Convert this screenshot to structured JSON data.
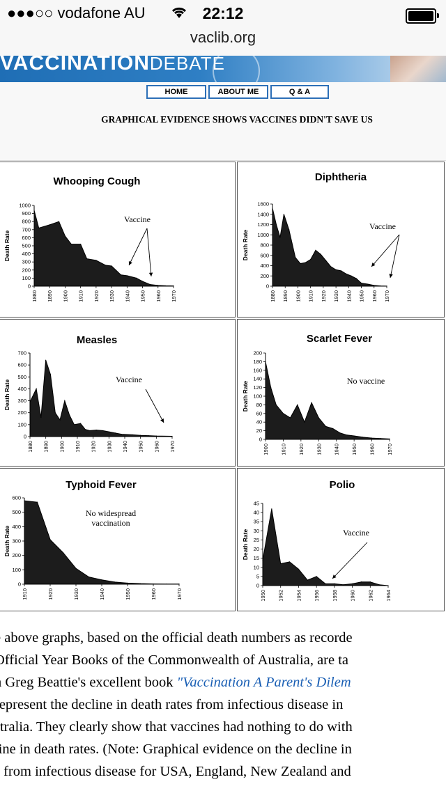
{
  "status_bar": {
    "carrier": "●●●○○ vodafone AU",
    "time": "22:12"
  },
  "browser": {
    "url": "vaclib.org"
  },
  "banner": {
    "brand_bold": "VACCINATION",
    "brand_thin": "DEBATE"
  },
  "nav": {
    "items": [
      "HOME",
      "ABOUT ME",
      "Q & A"
    ]
  },
  "headline": "GRAPHICAL EVIDENCE SHOWS VACCINES DIDN'T SAVE US",
  "chart_data": [
    {
      "type": "area",
      "title": "Whooping Cough",
      "ylabel": "Death Rate",
      "x": [
        1880,
        1883,
        1890,
        1896,
        1900,
        1904,
        1910,
        1914,
        1920,
        1926,
        1930,
        1936,
        1940,
        1946,
        1950,
        1955,
        1960,
        1965,
        1970
      ],
      "y": [
        940,
        720,
        760,
        800,
        620,
        520,
        520,
        340,
        320,
        260,
        250,
        140,
        130,
        100,
        60,
        20,
        10,
        5,
        3
      ],
      "xlim": [
        1880,
        1970
      ],
      "ylim": [
        0,
        1000
      ],
      "xticks": [
        1880,
        1890,
        1900,
        1910,
        1920,
        1930,
        1940,
        1950,
        1960,
        1970
      ],
      "yticks": [
        0,
        100,
        200,
        300,
        400,
        500,
        600,
        700,
        800,
        900,
        1000
      ],
      "annotation": "Vaccine",
      "annotation_points": [
        1942,
        1955
      ]
    },
    {
      "type": "area",
      "title": "Diphtheria",
      "ylabel": "Death Rate",
      "x": [
        1880,
        1883,
        1886,
        1889,
        1893,
        1898,
        1902,
        1906,
        1910,
        1914,
        1918,
        1922,
        1926,
        1930,
        1934,
        1938,
        1942,
        1946,
        1950,
        1955,
        1960,
        1965,
        1970
      ],
      "y": [
        1520,
        1200,
        950,
        1400,
        1100,
        560,
        440,
        460,
        520,
        700,
        620,
        500,
        380,
        320,
        300,
        240,
        200,
        150,
        60,
        40,
        15,
        5,
        2
      ],
      "xlim": [
        1880,
        1970
      ],
      "ylim": [
        0,
        1600
      ],
      "xticks": [
        1880,
        1890,
        1900,
        1910,
        1920,
        1930,
        1940,
        1950,
        1960,
        1970
      ],
      "yticks": [
        0,
        200,
        400,
        600,
        800,
        1000,
        1200,
        1400,
        1600
      ],
      "annotation": "Vaccine",
      "annotation_points": [
        1942,
        1948
      ]
    },
    {
      "type": "area",
      "title": "Measles",
      "ylabel": "Death Rate",
      "x": [
        1880,
        1884,
        1887,
        1890,
        1893,
        1896,
        1899,
        1902,
        1905,
        1908,
        1912,
        1915,
        1918,
        1922,
        1926,
        1930,
        1934,
        1938,
        1945,
        1950,
        1955,
        1960,
        1970
      ],
      "y": [
        290,
        400,
        160,
        640,
        520,
        200,
        140,
        300,
        180,
        100,
        110,
        60,
        50,
        55,
        50,
        40,
        30,
        20,
        15,
        10,
        8,
        5,
        3
      ],
      "xlim": [
        1880,
        1970
      ],
      "ylim": [
        0,
        700
      ],
      "xticks": [
        1880,
        1890,
        1900,
        1910,
        1920,
        1930,
        1940,
        1950,
        1960,
        1970
      ],
      "yticks": [
        0,
        100,
        200,
        300,
        400,
        500,
        600,
        700
      ],
      "annotation": "Vaccine",
      "annotation_points": [
        1968
      ]
    },
    {
      "type": "area",
      "title": "Scarlet Fever",
      "ylabel": "Death Rate",
      "x": [
        1900,
        1903,
        1906,
        1910,
        1914,
        1918,
        1922,
        1926,
        1930,
        1934,
        1938,
        1942,
        1946,
        1950,
        1955,
        1960,
        1965,
        1970
      ],
      "y": [
        180,
        120,
        80,
        60,
        50,
        80,
        40,
        85,
        50,
        30,
        25,
        15,
        10,
        8,
        5,
        3,
        2,
        1
      ],
      "xlim": [
        1900,
        1970
      ],
      "ylim": [
        0,
        200
      ],
      "xticks": [
        1900,
        1910,
        1920,
        1930,
        1940,
        1950,
        1960,
        1970
      ],
      "yticks": [
        0,
        20,
        40,
        60,
        80,
        100,
        120,
        140,
        160,
        180,
        200
      ],
      "annotation": "No vaccine",
      "annotation_points": []
    },
    {
      "type": "area",
      "title": "Typhoid Fever",
      "ylabel": "Death Rate",
      "x": [
        1910,
        1915,
        1920,
        1925,
        1930,
        1935,
        1940,
        1945,
        1950,
        1955,
        1960,
        1965,
        1970
      ],
      "y": [
        580,
        570,
        310,
        220,
        110,
        50,
        30,
        15,
        8,
        4,
        2,
        1,
        1
      ],
      "xlim": [
        1910,
        1970
      ],
      "ylim": [
        0,
        600
      ],
      "xticks": [
        1910,
        1920,
        1930,
        1940,
        1950,
        1960,
        1970
      ],
      "yticks": [
        0,
        100,
        200,
        300,
        400,
        500,
        600
      ],
      "annotation": "No widespread vaccination",
      "annotation_points": []
    },
    {
      "type": "area",
      "title": "Polio",
      "ylabel": "Death Rate",
      "x": [
        1950,
        1951,
        1952,
        1953,
        1954,
        1955,
        1956,
        1957,
        1958,
        1959,
        1960,
        1961,
        1962,
        1963,
        1964
      ],
      "y": [
        14,
        42,
        12,
        13,
        9,
        3,
        5,
        1,
        1,
        0.5,
        1,
        2,
        2,
        0.5,
        0
      ],
      "xlim": [
        1950,
        1964
      ],
      "ylim": [
        0,
        45
      ],
      "xticks": [
        1950,
        1952,
        1954,
        1956,
        1958,
        1960,
        1962,
        1964
      ],
      "yticks": [
        0,
        5,
        10,
        15,
        20,
        25,
        30,
        35,
        40,
        45
      ],
      "annotation": "Vaccine",
      "annotation_points": [
        1956
      ]
    }
  ],
  "paragraph": {
    "l1": "e above graphs, based on the official death numbers as recorde",
    "l2": "Official Year Books of the Commonwealth of Australia, are ta",
    "l3a": "n Greg Beattie's excellent book ",
    "l3link": "\"Vaccination A Parent's Dilem",
    "l4": " represent the decline in death rates from infectious disease in",
    "l5": "stralia. They clearly show that vaccines had nothing to do with",
    "l6": "line in death rates. (Note: Graphical evidence on the decline in",
    "l7": "s from infectious disease for USA, England, New Zealand and"
  }
}
